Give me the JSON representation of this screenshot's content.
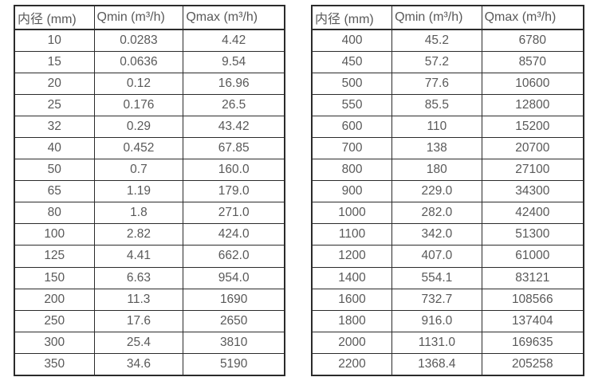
{
  "left_table": {
    "headers": [
      "内径 (mm)",
      "Qmin (m³/h)",
      "Qmax (m³/h)"
    ],
    "rows": [
      [
        "10",
        "0.0283",
        "4.42"
      ],
      [
        "15",
        "0.0636",
        "9.54"
      ],
      [
        "20",
        "0.12",
        "16.96"
      ],
      [
        "25",
        "0.176",
        "26.5"
      ],
      [
        "32",
        "0.29",
        "43.42"
      ],
      [
        "40",
        "0.452",
        "67.85"
      ],
      [
        "50",
        "0.7",
        "160.0"
      ],
      [
        "65",
        "1.19",
        "179.0"
      ],
      [
        "80",
        "1.8",
        "271.0"
      ],
      [
        "100",
        "2.82",
        "424.0"
      ],
      [
        "125",
        "4.41",
        "662.0"
      ],
      [
        "150",
        "6.63",
        "954.0"
      ],
      [
        "200",
        "11.3",
        "1690"
      ],
      [
        "250",
        "17.6",
        "2650"
      ],
      [
        "300",
        "25.4",
        "3810"
      ],
      [
        "350",
        "34.6",
        "5190"
      ]
    ]
  },
  "right_table": {
    "headers": [
      "内径 (mm)",
      "Qmin (m³/h)",
      "Qmax (m³/h)"
    ],
    "rows": [
      [
        "400",
        "45.2",
        "6780"
      ],
      [
        "450",
        "57.2",
        "8570"
      ],
      [
        "500",
        "77.6",
        "10600"
      ],
      [
        "550",
        "85.5",
        "12800"
      ],
      [
        "600",
        "110",
        "15200"
      ],
      [
        "700",
        "138",
        "20700"
      ],
      [
        "800",
        "180",
        "27100"
      ],
      [
        "900",
        "229.0",
        "34300"
      ],
      [
        "1000",
        "282.0",
        "42400"
      ],
      [
        "1100",
        "342.0",
        "51300"
      ],
      [
        "1200",
        "407.0",
        "61000"
      ],
      [
        "1400",
        "554.1",
        "83121"
      ],
      [
        "1600",
        "732.7",
        "108566"
      ],
      [
        "1800",
        "916.0",
        "137404"
      ],
      [
        "2000",
        "1131.0",
        "169635"
      ],
      [
        "2200",
        "1368.4",
        "205258"
      ]
    ]
  },
  "colors": {
    "border": "#2b2b2b",
    "text": "#595959",
    "background": "#ffffff"
  }
}
